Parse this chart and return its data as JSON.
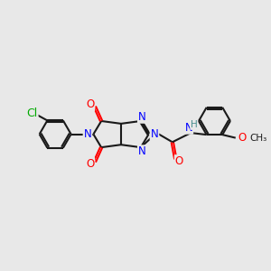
{
  "background_color": "#e8e8e8",
  "bond_color": "#1a1a1a",
  "bond_width": 1.5,
  "atom_colors": {
    "N": "#0000ff",
    "O": "#ff0000",
    "Cl": "#00aa00",
    "C": "#1a1a1a",
    "H": "#4a8f8f"
  },
  "font_size": 8.5,
  "figsize": [
    3.0,
    3.0
  ],
  "dpi": 100
}
